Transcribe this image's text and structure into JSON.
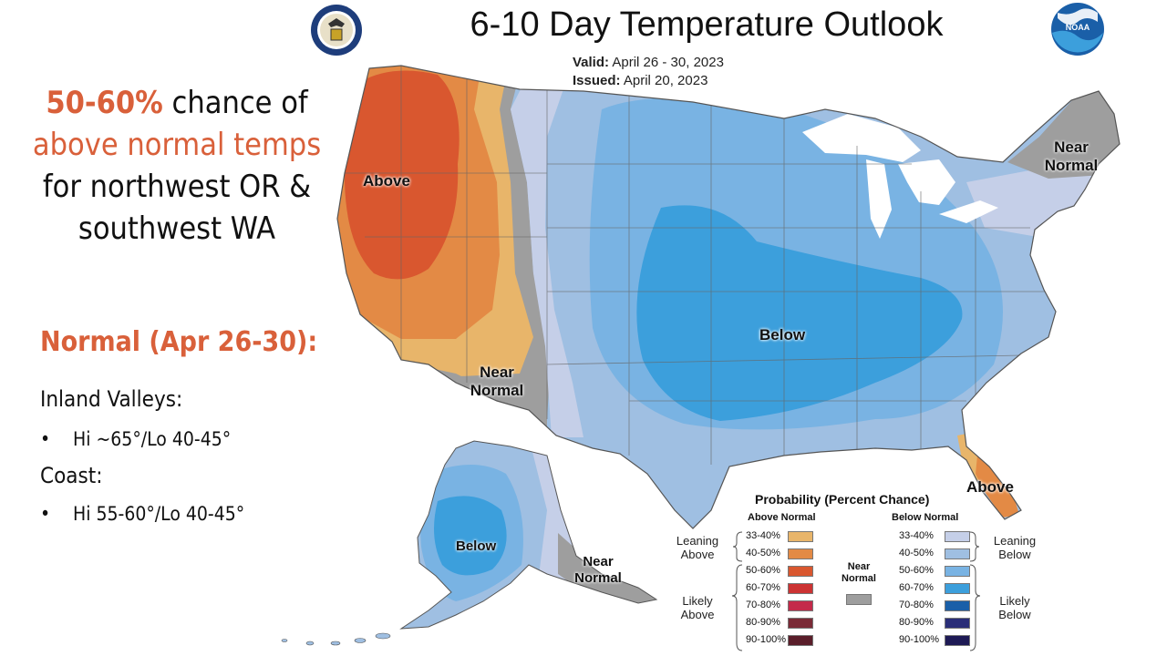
{
  "header": {
    "title": "6-10 Day Temperature Outlook",
    "valid_label": "Valid:",
    "valid_value": "April 26 - 30, 2023",
    "issued_label": "Issued:",
    "issued_value": "April 20, 2023",
    "left_logo": "department-of-commerce-seal",
    "right_logo": "noaa-logo",
    "noaa_text": "NOAA"
  },
  "narrative": {
    "headline_pct": "50-60%",
    "headline_1": "chance of",
    "headline_2": "above normal temps",
    "headline_3": "for northwest OR &",
    "headline_4": "southwest WA",
    "normal_heading": "Normal (Apr 26-30):",
    "inland_heading": "Inland Valleys:",
    "inland_value": "Hi ~65°/Lo 40-45°",
    "coast_heading": "Coast:",
    "coast_value": "Hi 55-60°/Lo 40-45°",
    "bullet": "•"
  },
  "map": {
    "labels": {
      "above_west": "Above",
      "near_normal_sw_1": "Near",
      "near_normal_sw_2": "Normal",
      "below_central": "Below",
      "near_normal_ne_1": "Near",
      "near_normal_ne_2": "Normal",
      "above_florida": "Above",
      "below_alaska": "Below",
      "near_normal_ak_1": "Near",
      "near_normal_ak_2": "Normal"
    },
    "colors": {
      "above_33_40": "#e8b56a",
      "above_40_50": "#e38a45",
      "above_50_60": "#d9572f",
      "near_normal": "#9e9e9e",
      "below_33_40": "#c5cfe8",
      "below_40_50": "#9fbfe2",
      "below_50_60": "#79b3e3",
      "below_60_70": "#3c9fdc",
      "water": "#ffffff",
      "border": "#666666"
    }
  },
  "legend": {
    "title": "Probability (Percent Chance)",
    "above_header": "Above Normal",
    "below_header": "Below Normal",
    "near_header_1": "Near",
    "near_header_2": "Normal",
    "leaning_above_1": "Leaning",
    "leaning_above_2": "Above",
    "likely_above_1": "Likely",
    "likely_above_2": "Above",
    "leaning_below_1": "Leaning",
    "leaning_below_2": "Below",
    "likely_below_1": "Likely",
    "likely_below_2": "Below",
    "near_color": "#9e9e9e",
    "above": [
      {
        "label": "33-40%",
        "color": "#e8b56a"
      },
      {
        "label": "40-50%",
        "color": "#e38a45"
      },
      {
        "label": "50-60%",
        "color": "#d9572f"
      },
      {
        "label": "60-70%",
        "color": "#cc3333"
      },
      {
        "label": "70-80%",
        "color": "#c42a4a"
      },
      {
        "label": "80-90%",
        "color": "#7a2a36"
      },
      {
        "label": "90-100%",
        "color": "#5a1e2a"
      }
    ],
    "below": [
      {
        "label": "33-40%",
        "color": "#c5cfe8"
      },
      {
        "label": "40-50%",
        "color": "#9fbfe2"
      },
      {
        "label": "50-60%",
        "color": "#79b3e3"
      },
      {
        "label": "60-70%",
        "color": "#3c9fdc"
      },
      {
        "label": "70-80%",
        "color": "#1a5fa8"
      },
      {
        "label": "80-90%",
        "color": "#2a2e78"
      },
      {
        "label": "90-100%",
        "color": "#1e1a55"
      }
    ]
  }
}
